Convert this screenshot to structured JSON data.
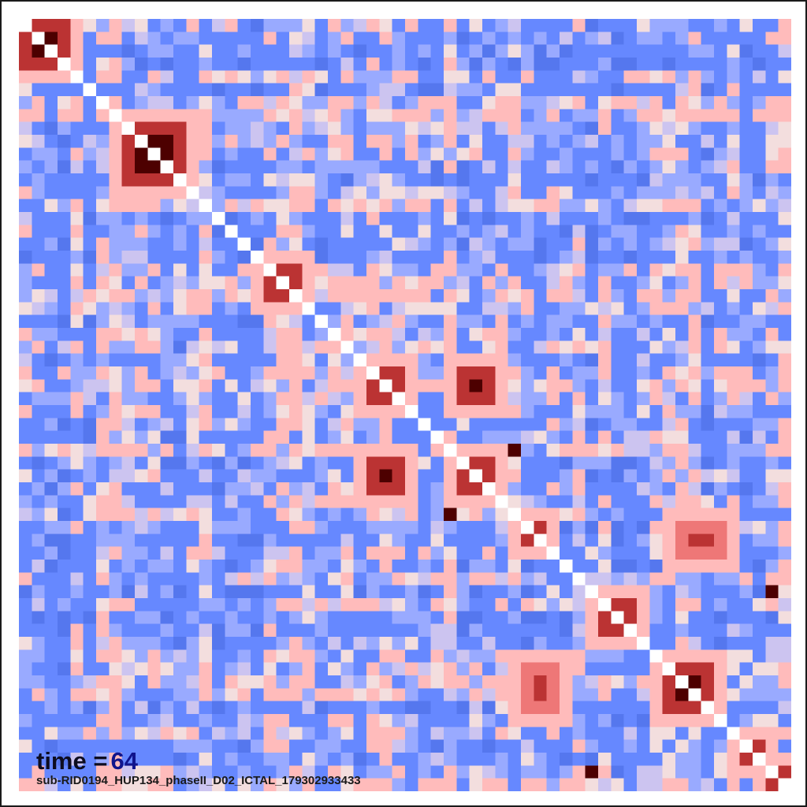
{
  "chart_data": {
    "type": "heatmap",
    "title": "",
    "xlabel": "",
    "ylabel": "",
    "n": 60,
    "colors": {
      "very_low": "#5577ee",
      "low": "#6688ff",
      "mid_low": "#99aaff",
      "neutral": "#ccc4f0",
      "pale": "#f3dede",
      "high": "#ffbbbb",
      "higher": "#ee7777",
      "very_high": "#bb3333",
      "max": "#4d0000",
      "diagonal": "#ffffff"
    },
    "strong_blocks": [
      {
        "rows": [
          0,
          3
        ],
        "cols": [
          0,
          3
        ]
      },
      {
        "rows": [
          8,
          12
        ],
        "cols": [
          8,
          12
        ]
      },
      {
        "rows": [
          19,
          21
        ],
        "cols": [
          19,
          21
        ]
      },
      {
        "rows": [
          27,
          29
        ],
        "cols": [
          27,
          29
        ]
      },
      {
        "rows": [
          27,
          29
        ],
        "cols": [
          34,
          36
        ]
      },
      {
        "rows": [
          34,
          36
        ],
        "cols": [
          27,
          29
        ]
      },
      {
        "rows": [
          34,
          36
        ],
        "cols": [
          34,
          36
        ]
      },
      {
        "rows": [
          39,
          40
        ],
        "cols": [
          39,
          40
        ]
      },
      {
        "rows": [
          45,
          47
        ],
        "cols": [
          45,
          47
        ]
      },
      {
        "rows": [
          50,
          53
        ],
        "cols": [
          50,
          53
        ]
      },
      {
        "rows": [
          56,
          57
        ],
        "cols": [
          56,
          57
        ]
      },
      {
        "rows": [
          58,
          59
        ],
        "cols": [
          58,
          59
        ]
      }
    ],
    "secondary_blocks": [
      {
        "rows": [
          39,
          41
        ],
        "cols": [
          51,
          54
        ]
      },
      {
        "rows": [
          50,
          53
        ],
        "cols": [
          39,
          41
        ]
      }
    ],
    "isolated_points": [
      {
        "row": 33,
        "col": 38
      },
      {
        "row": 38,
        "col": 33
      },
      {
        "row": 44,
        "col": 58
      },
      {
        "row": 58,
        "col": 44
      }
    ]
  },
  "overlay": {
    "time_label": "time =",
    "time_value": "64",
    "subtitle": "sub-RID0194_HUP134_phaseII_D02_ICTAL_179302933433"
  }
}
